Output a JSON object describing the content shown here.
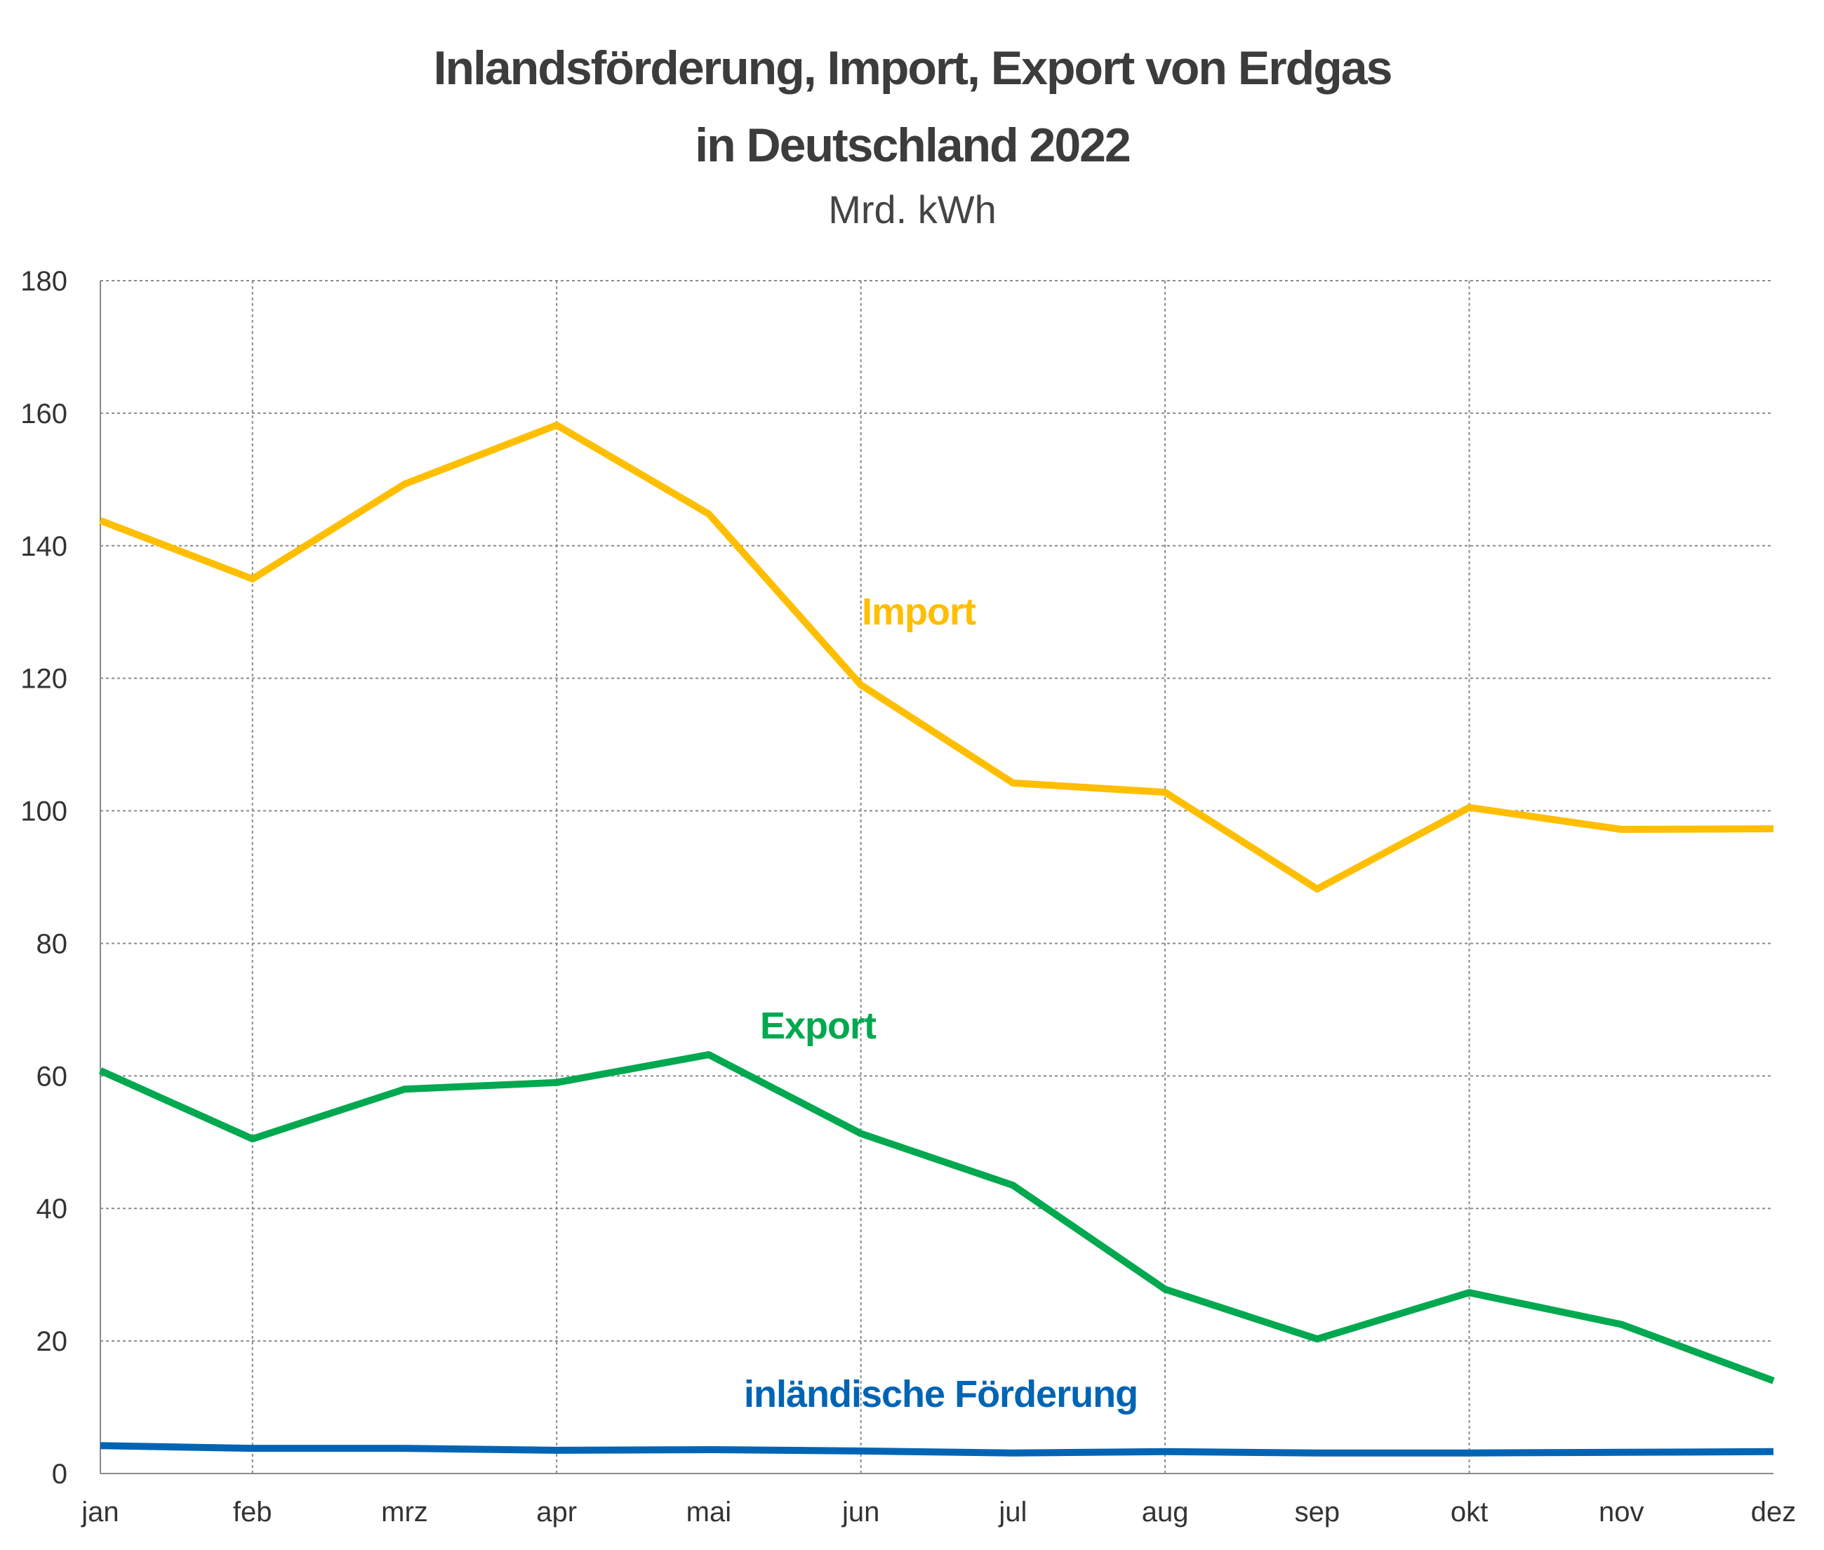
{
  "chart_data": {
    "type": "line",
    "title_lines": [
      "Inlandsförderung, Import, Export von Erdgas",
      "in Deutschland 2022"
    ],
    "subtitle": "Mrd. kWh",
    "xlabel": "",
    "ylabel": "",
    "categories": [
      "jan",
      "feb",
      "mrz",
      "apr",
      "mai",
      "jun",
      "jul",
      "aug",
      "sep",
      "okt",
      "nov",
      "dez"
    ],
    "ylim": [
      0,
      180
    ],
    "yticks": [
      0,
      20,
      40,
      60,
      80,
      100,
      120,
      140,
      160,
      180
    ],
    "grid": true,
    "legend": "inline labels",
    "series": [
      {
        "name": "Import",
        "color": "#ffbe00",
        "values": [
          143.8,
          135.0,
          149.3,
          158.2,
          144.8,
          119.0,
          104.2,
          102.8,
          88.2,
          100.5,
          97.2,
          97.3
        ]
      },
      {
        "name": "Export",
        "color": "#00a84f",
        "values": [
          60.8,
          50.5,
          58.0,
          59.0,
          63.2,
          51.3,
          43.5,
          27.8,
          20.3,
          27.3,
          22.5,
          14.0
        ]
      },
      {
        "name": "inländische Förderung",
        "color": "#0064b4",
        "values": [
          4.2,
          3.8,
          3.8,
          3.5,
          3.6,
          3.4,
          3.1,
          3.3,
          3.1,
          3.1,
          3.2,
          3.3
        ]
      }
    ]
  }
}
